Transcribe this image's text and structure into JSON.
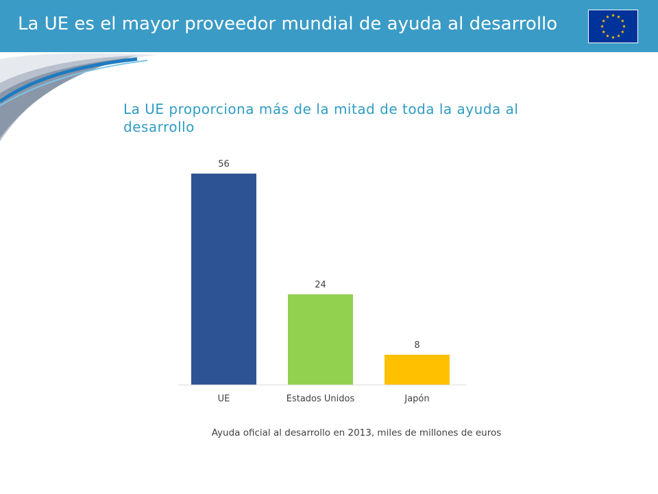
{
  "header": {
    "title": "La UE es el mayor proveedor mundial de ayuda al desarrollo"
  },
  "icons": {
    "flag": "eu-flag-icon"
  },
  "colors": {
    "header": "#3a9bc6",
    "subtitle": "#2f9cc3"
  },
  "subtitle": "La UE proporciona más de la mitad de toda la ayuda al desarrollo",
  "caption": "Ayuda oficial al desarrollo en 2013, miles de millones de euros",
  "chart_data": {
    "type": "bar",
    "categories": [
      "UE",
      "Estados Unidos",
      "Japón"
    ],
    "values": [
      56,
      24,
      8
    ],
    "colors": [
      "#2e5394",
      "#92d050",
      "#ffc000"
    ],
    "ylim": [
      0,
      56
    ],
    "grid": false,
    "legend": "none"
  }
}
